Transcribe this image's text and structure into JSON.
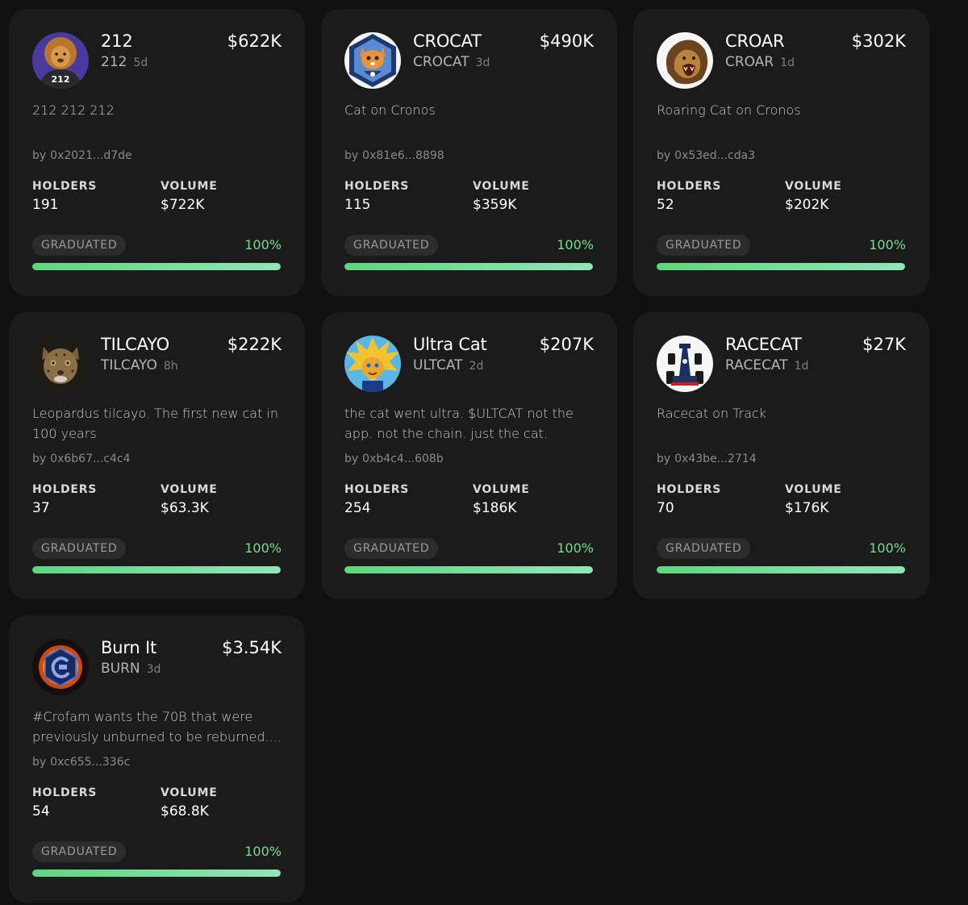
{
  "tokens": [
    {
      "name": "212",
      "ticker": "212",
      "age": "5d",
      "market_cap": "$622K",
      "description": "212 212 212",
      "by_label": "by",
      "creator": "0x2021...d7de",
      "holders_label": "HOLDERS",
      "holders": "191",
      "volume_label": "VOLUME",
      "volume": "$722K",
      "status": "GRADUATED",
      "progress_label": "100%",
      "progress": 1.0,
      "avatar_icon": "lion-hoodie-avatar-icon",
      "avatar_text": "212"
    },
    {
      "name": "CROCAT",
      "ticker": "CROCAT",
      "age": "3d",
      "market_cap": "$490K",
      "description": "Cat on Cronos",
      "by_label": "by",
      "creator": "0x81e6...8898",
      "holders_label": "HOLDERS",
      "holders": "115",
      "volume_label": "VOLUME",
      "volume": "$359K",
      "status": "GRADUATED",
      "progress_label": "100%",
      "progress": 1.0,
      "avatar_icon": "orange-cat-hexagon-icon"
    },
    {
      "name": "CROAR",
      "ticker": "CROAR",
      "age": "1d",
      "market_cap": "$302K",
      "description": "Roaring Cat on Cronos",
      "by_label": "by",
      "creator": "0x53ed...cda3",
      "holders_label": "HOLDERS",
      "holders": "52",
      "volume_label": "VOLUME",
      "volume": "$202K",
      "status": "GRADUATED",
      "progress_label": "100%",
      "progress": 1.0,
      "avatar_icon": "roaring-lion-icon"
    },
    {
      "name": "TILCAYO",
      "ticker": "TILCAYO",
      "age": "8h",
      "market_cap": "$222K",
      "description": "Leopardus tilcayo. The first new cat in 100 years",
      "by_label": "by",
      "creator": "0x6b67...c4c4",
      "holders_label": "HOLDERS",
      "holders": "37",
      "volume_label": "VOLUME",
      "volume": "$63.3K",
      "status": "GRADUATED",
      "progress_label": "100%",
      "progress": 1.0,
      "avatar_icon": "wild-cat-icon"
    },
    {
      "name": "Ultra Cat",
      "ticker": "ULTCAT",
      "age": "2d",
      "market_cap": "$207K",
      "description": "the cat went ultra. $ULTCAT not the app. not the chain. just the cat.",
      "by_label": "by",
      "creator": "0xb4c4...608b",
      "holders_label": "HOLDERS",
      "holders": "254",
      "volume_label": "VOLUME",
      "volume": "$186K",
      "status": "GRADUATED",
      "progress_label": "100%",
      "progress": 1.0,
      "avatar_icon": "super-saiyan-cat-icon"
    },
    {
      "name": "RACECAT",
      "ticker": "RACECAT",
      "age": "1d",
      "market_cap": "$27K",
      "description": "Racecat on Track",
      "by_label": "by",
      "creator": "0x43be...2714",
      "holders_label": "HOLDERS",
      "holders": "70",
      "volume_label": "VOLUME",
      "volume": "$176K",
      "status": "GRADUATED",
      "progress_label": "100%",
      "progress": 1.0,
      "avatar_icon": "race-car-icon"
    },
    {
      "name": "Burn It",
      "ticker": "BURN",
      "age": "3d",
      "market_cap": "$3.54K",
      "description": "#Crofam wants the 70B that were previously unburned to be reburned....",
      "by_label": "by",
      "creator": "0xc655...336c",
      "holders_label": "HOLDERS",
      "holders": "54",
      "volume_label": "VOLUME",
      "volume": "$68.8K",
      "status": "GRADUATED",
      "progress_label": "100%",
      "progress": 1.0,
      "avatar_icon": "flaming-cronos-logo-icon"
    }
  ],
  "colors": {
    "background": "#101010",
    "card": "#1b1b1c",
    "progress_green": "#72e08a",
    "badge_bg": "#2c2c2d"
  }
}
